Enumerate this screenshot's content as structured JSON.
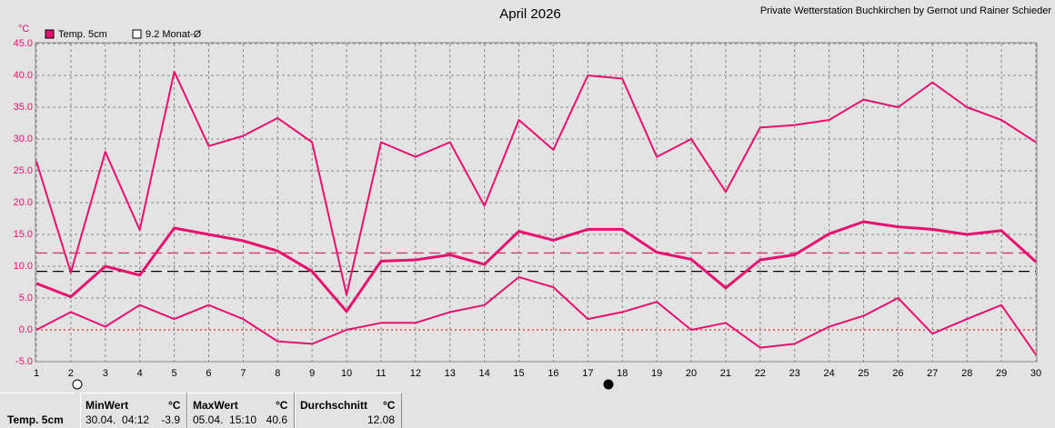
{
  "chart_data": {
    "type": "line",
    "title": "April 2026",
    "credit": "Private Wetterstation Buchkirchen by Gernot und Rainer Schieder",
    "y_unit": "°C",
    "legend": [
      {
        "label": "Temp. 5cm",
        "color": "#e8106e"
      },
      {
        "label": "9.2 Monat-Ø",
        "color": "#ffffff"
      }
    ],
    "x": [
      1,
      2,
      3,
      4,
      5,
      6,
      7,
      8,
      9,
      10,
      11,
      12,
      13,
      14,
      15,
      16,
      17,
      18,
      19,
      20,
      21,
      22,
      23,
      24,
      25,
      26,
      27,
      28,
      29,
      30
    ],
    "series": [
      {
        "color": "#e8106e",
        "width": 2,
        "values": [
          26.5,
          9,
          28,
          15.7,
          40.6,
          28.9,
          30.5,
          33.3,
          29.5,
          5.5,
          29.5,
          27.2,
          29.5,
          19.5,
          33,
          28.3,
          40,
          39.5,
          27.2,
          30,
          21.7,
          31.8,
          32.2,
          33,
          36.2,
          35,
          38.9,
          35,
          33,
          29.5
        ]
      },
      {
        "color": "#e8106e",
        "width": 3,
        "values": [
          7.3,
          5.2,
          10,
          8.6,
          16,
          15,
          14,
          12.4,
          9.2,
          2.9,
          10.8,
          11,
          11.8,
          10.3,
          15.5,
          14.1,
          15.8,
          15.8,
          12.2,
          11.1,
          6.6,
          11,
          11.8,
          15.1,
          17,
          16.2,
          15.8,
          15,
          15.6,
          10.7
        ]
      },
      {
        "color": "#e8106e",
        "width": 2,
        "values": [
          0,
          2.8,
          0.5,
          3.9,
          1.7,
          3.9,
          1.7,
          -1.8,
          -2.2,
          0,
          1.1,
          1.1,
          2.8,
          3.9,
          8.3,
          6.7,
          1.7,
          2.8,
          4.4,
          0,
          1.1,
          -2.8,
          -2.2,
          0.5,
          2.2,
          5,
          -0.6,
          1.7,
          3.9,
          -3.9
        ]
      }
    ],
    "reference_lines": [
      {
        "value": 12.08,
        "color": "#d03a6e"
      },
      {
        "value": 9.2,
        "color": "#000000"
      }
    ],
    "xlim": [
      1,
      30
    ],
    "xticks": [
      1,
      2,
      3,
      4,
      5,
      6,
      7,
      8,
      9,
      10,
      11,
      12,
      13,
      14,
      15,
      16,
      17,
      18,
      19,
      20,
      21,
      22,
      23,
      24,
      25,
      26,
      27,
      28,
      29,
      30
    ],
    "ylim": [
      -5,
      45
    ],
    "yticks": [
      {
        "value": 45,
        "label": "45.0"
      },
      {
        "value": 40,
        "label": "40.0"
      },
      {
        "value": 35,
        "label": "35.0"
      },
      {
        "value": 30,
        "label": "30.0"
      },
      {
        "value": 25,
        "label": "25.0"
      },
      {
        "value": 20,
        "label": "20.0"
      },
      {
        "value": 15,
        "label": "15.0"
      },
      {
        "value": 10,
        "label": "10.0"
      },
      {
        "value": 5,
        "label": "5.0"
      },
      {
        "value": 0,
        "label": "0.0"
      },
      {
        "value": -5,
        "label": "-5.0"
      }
    ],
    "grid": true,
    "zero_line_color": "#e00000"
  },
  "stats": {
    "label": "Temp. 5cm",
    "min": {
      "title": "MinWert",
      "unit": "°C",
      "time": "30.04.  04:12",
      "value": -3.9
    },
    "max": {
      "title": "MaxWert",
      "unit": "°C",
      "time": "05.04.  15:10",
      "value": 40.6
    },
    "avg": {
      "title": "Durchschnitt",
      "unit": "°C",
      "value": 12.08
    }
  }
}
